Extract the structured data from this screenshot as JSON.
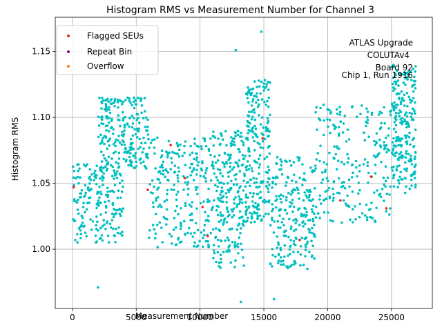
{
  "chart_data": {
    "type": "scatter",
    "title": "Histogram RMS vs Measurement Number for Channel 3",
    "xlabel": "Measurement Number",
    "ylabel": "Histogram RMS",
    "xlim": [
      -1343,
      28200
    ],
    "ylim": [
      0.955,
      1.176
    ],
    "x_ticks": [
      0,
      5000,
      10000,
      15000,
      20000,
      25000
    ],
    "x_tick_labels": [
      "0",
      "5000",
      "10000",
      "15000",
      "20000",
      "25000"
    ],
    "y_ticks": [
      1.0,
      1.05,
      1.1,
      1.15
    ],
    "y_tick_labels": [
      "1.00",
      "1.05",
      "1.10",
      "1.15"
    ],
    "grid": true,
    "legend_position": "top-left",
    "annotation_lines": [
      "ATLAS Upgrade",
      "COLUTAv4",
      "Board 92",
      "Chip 1, Run 1916"
    ],
    "background_series": {
      "color": "#00bfbf",
      "x_range": [
        0,
        26900
      ],
      "y_bands": [
        {
          "x": [
            0,
            4000
          ],
          "y": [
            1.005,
            1.065
          ]
        },
        {
          "x": [
            2000,
            6000
          ],
          "y": [
            1.06,
            1.115
          ]
        },
        {
          "x": [
            6000,
            11000
          ],
          "y": [
            1.0,
            1.085
          ]
        },
        {
          "x": [
            11000,
            13500
          ],
          "y": [
            0.985,
            1.09
          ]
        },
        {
          "x": [
            13500,
            15500
          ],
          "y": [
            1.02,
            1.13
          ]
        },
        {
          "x": [
            15500,
            19000
          ],
          "y": [
            0.985,
            1.07
          ]
        },
        {
          "x": [
            19000,
            25000
          ],
          "y": [
            1.02,
            1.11
          ]
        },
        {
          "x": [
            25000,
            26900
          ],
          "y": [
            1.04,
            1.14
          ]
        }
      ],
      "count": 1800,
      "notable_points": [
        {
          "x": 13200,
          "y": 0.96
        },
        {
          "x": 14800,
          "y": 1.165
        },
        {
          "x": 12800,
          "y": 1.151
        },
        {
          "x": 2000,
          "y": 0.971
        },
        {
          "x": 15800,
          "y": 0.962
        }
      ]
    },
    "series": [
      {
        "name": "Flagged SEUs",
        "color": "#e8251b",
        "points": [
          {
            "x": 100,
            "y": 1.047
          },
          {
            "x": 5900,
            "y": 1.045
          },
          {
            "x": 7700,
            "y": 1.079
          },
          {
            "x": 8800,
            "y": 1.054
          },
          {
            "x": 10200,
            "y": 1.032
          },
          {
            "x": 10600,
            "y": 1.01
          },
          {
            "x": 14900,
            "y": 1.084
          },
          {
            "x": 17800,
            "y": 1.007
          },
          {
            "x": 21000,
            "y": 1.037
          },
          {
            "x": 23400,
            "y": 1.055
          },
          {
            "x": 24600,
            "y": 1.031
          }
        ]
      },
      {
        "name": "Repeat Bin",
        "color": "#8b008b",
        "points": []
      },
      {
        "name": "Overflow",
        "color": "#ff7f0e",
        "points": []
      }
    ]
  }
}
